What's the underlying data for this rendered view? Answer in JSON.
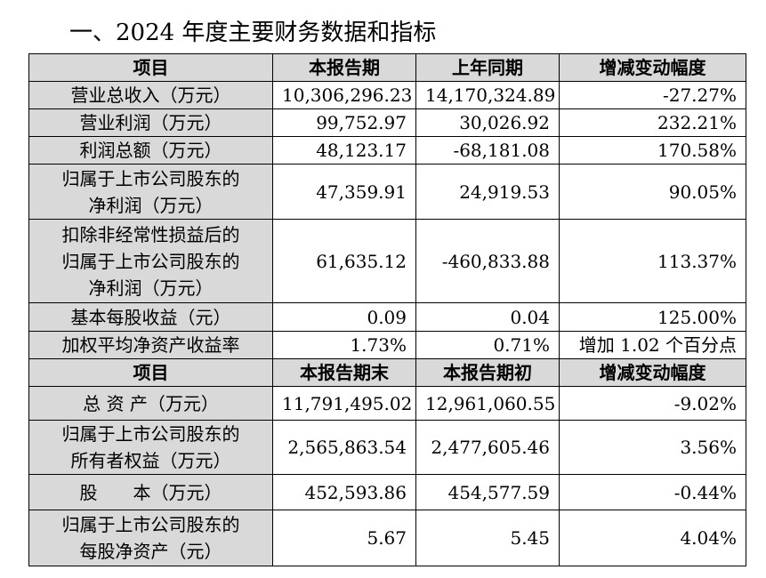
{
  "title": "一、2024 年度主要财务数据和指标",
  "section1": {
    "headers": [
      "项目",
      "本报告期",
      "上年同期",
      "增减变动幅度"
    ],
    "rows": [
      {
        "label": [
          "营业总收入（万元）"
        ],
        "current": "10,306,296.23",
        "previous": "14,170,324.89",
        "change": "-27.27%"
      },
      {
        "label": [
          "营业利润（万元）"
        ],
        "current": "99,752.97",
        "previous": "30,026.92",
        "change": "232.21%"
      },
      {
        "label": [
          "利润总额（万元）"
        ],
        "current": "48,123.17",
        "previous": "-68,181.08",
        "change": "170.58%"
      },
      {
        "label": [
          "归属于上市公司股东的",
          "净利润（万元）"
        ],
        "current": "47,359.91",
        "previous": "24,919.53",
        "change": "90.05%"
      },
      {
        "label": [
          "扣除非经常性损益后的",
          "归属于上市公司股东的",
          "净利润（万元）"
        ],
        "current": "61,635.12",
        "previous": "-460,833.88",
        "change": "113.37%"
      },
      {
        "label": [
          "基本每股收益（元）"
        ],
        "current": "0.09",
        "previous": "0.04",
        "change": "125.00%"
      },
      {
        "label": [
          "加权平均净资产收益率"
        ],
        "current": "1.73%",
        "previous": "0.71%",
        "change": "增加 1.02 个百分点"
      }
    ]
  },
  "section2": {
    "headers": [
      "项目",
      "本报告期末",
      "本报告期初",
      "增减变动幅度"
    ],
    "rows": [
      {
        "label": [
          "总 资 产（万元）"
        ],
        "current": "11,791,495.02",
        "previous": "12,961,060.55",
        "change": "-9.02%"
      },
      {
        "label": [
          "归属于上市公司股东的",
          "所有者权益（万元）"
        ],
        "current": "2,565,863.54",
        "previous": "2,477,605.46",
        "change": "3.56%"
      },
      {
        "label": [
          "股　　本（万元）"
        ],
        "current": "452,593.86",
        "previous": "454,577.59",
        "change": "-0.44%"
      },
      {
        "label": [
          "归属于上市公司股东的",
          "每股净资产（元）"
        ],
        "current": "5.67",
        "previous": "5.45",
        "change": "4.04%"
      }
    ]
  }
}
